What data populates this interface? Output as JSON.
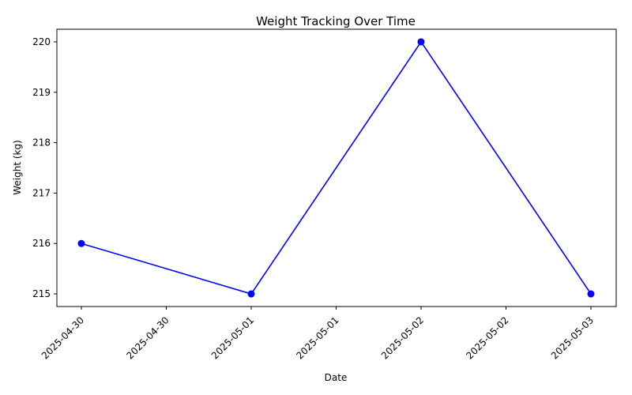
{
  "chart_data": {
    "type": "line",
    "title": "Weight Tracking Over Time",
    "xlabel": "Date",
    "ylabel": "Weight (kg)",
    "x": [
      "2025-04-30",
      "2025-05-01",
      "2025-05-02",
      "2025-05-03"
    ],
    "series": [
      {
        "values": [
          216,
          215,
          220,
          215
        ],
        "color": "#0000ff",
        "marker": "circle"
      }
    ],
    "x_ticks": [
      "2025-04-30",
      "2025-04-30",
      "2025-05-01",
      "2025-05-01",
      "2025-05-02",
      "2025-05-02",
      "2025-05-03"
    ],
    "y_ticks": [
      215,
      216,
      217,
      218,
      219,
      220
    ],
    "ylim": [
      214.75,
      220.25
    ],
    "grid": false,
    "legend": "none"
  }
}
